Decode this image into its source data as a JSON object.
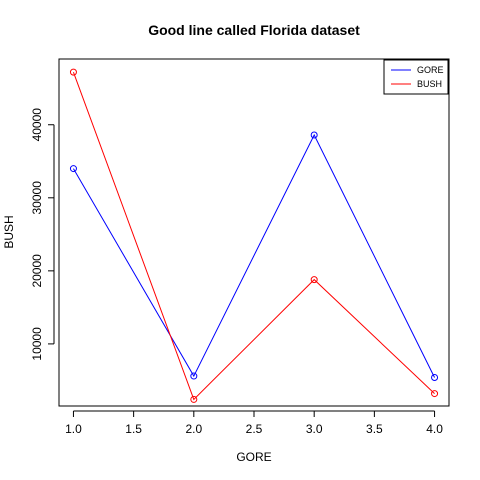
{
  "chart_data": {
    "type": "line",
    "title": "Good line called Florida dataset",
    "xlabel": "GORE",
    "ylabel": "BUSH",
    "x": [
      1.0,
      2.0,
      3.0,
      4.0
    ],
    "xlim": [
      0.88,
      4.12
    ],
    "ylim": [
      1500,
      49000
    ],
    "xticks": [
      1.0,
      1.5,
      2.0,
      2.5,
      3.0,
      3.5,
      4.0
    ],
    "xtick_labels": [
      "1.0",
      "1.5",
      "2.0",
      "2.5",
      "3.0",
      "3.5",
      "4.0"
    ],
    "yticks": [
      10000,
      20000,
      30000,
      40000
    ],
    "ytick_labels": [
      "10000",
      "20000",
      "30000",
      "40000"
    ],
    "grid": false,
    "legend_position": "top-right",
    "series": [
      {
        "name": "GORE",
        "color": "#0000ff",
        "values": [
          34000,
          5600,
          38600,
          5400
        ]
      },
      {
        "name": "BUSH",
        "color": "#ff0000",
        "values": [
          47200,
          2400,
          18800,
          3200
        ]
      }
    ]
  }
}
